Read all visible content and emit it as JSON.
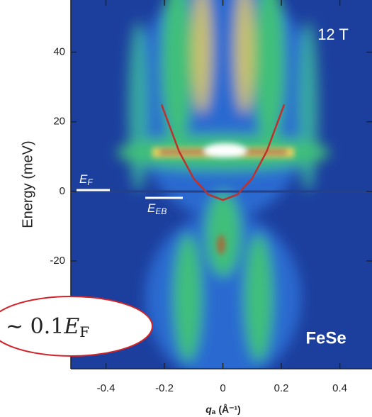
{
  "chart_data": {
    "type": "line",
    "xlabel_symbol": "q",
    "xlabel_sub": "a",
    "xlabel_unit": "(Å⁻¹)",
    "ylabel": "Energy (meV)",
    "x": [
      -0.21,
      -0.15,
      -0.1,
      -0.05,
      0,
      0.05,
      0.1,
      0.15,
      0.21
    ],
    "series": [
      {
        "color": "#c0302a",
        "values": [
          25,
          11.5,
          3.7,
          -0.9,
          -2.5,
          -0.9,
          3.7,
          11.5,
          25
        ]
      }
    ],
    "xlim": [
      -0.52,
      0.51
    ],
    "xticks": [
      -0.4,
      -0.2,
      0,
      0.2,
      0.4
    ],
    "ylim": [
      -51,
      55
    ],
    "yticks": [
      -20,
      0,
      20,
      40
    ],
    "annotations": {
      "field": "12 T",
      "material": "FeSe",
      "fermi": {
        "main": "E",
        "sub": "F"
      },
      "exciton": {
        "main": "E",
        "sub": "EB"
      },
      "ratio": {
        "prefix": "∼ 0.1",
        "main": "E",
        "sub": "F"
      }
    }
  }
}
